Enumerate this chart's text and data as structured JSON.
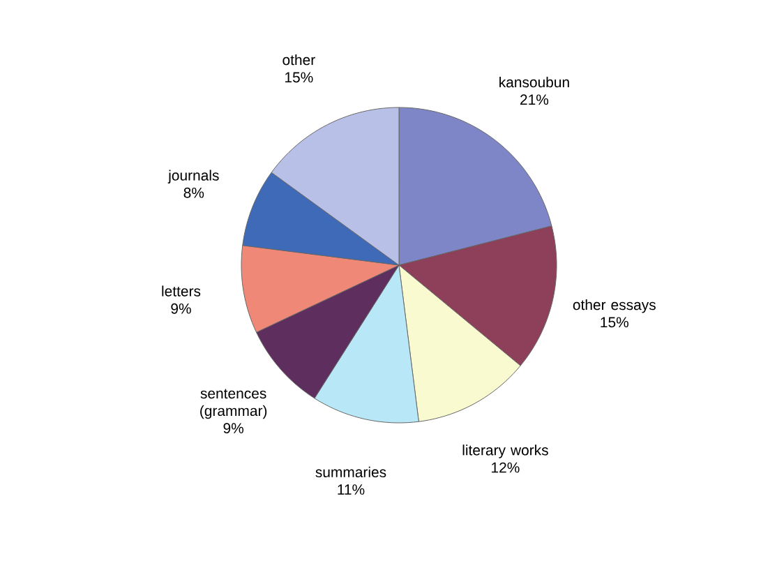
{
  "chart_data": {
    "type": "pie",
    "categories": [
      "kansoubun",
      "other essays",
      "literary works",
      "summaries",
      "sentences (grammar)",
      "letters",
      "journals",
      "other"
    ],
    "values": [
      21,
      15,
      12,
      11,
      9,
      9,
      8,
      15
    ],
    "value_labels": [
      "21%",
      "15%",
      "12%",
      "11%",
      "9%",
      "9%",
      "8%",
      "15%"
    ],
    "colors": [
      "#7f86c8",
      "#8e3f5a",
      "#fafad0",
      "#b8e8f8",
      "#5e2f5e",
      "#f08878",
      "#3e6ab8",
      "#b8c0e8"
    ]
  }
}
